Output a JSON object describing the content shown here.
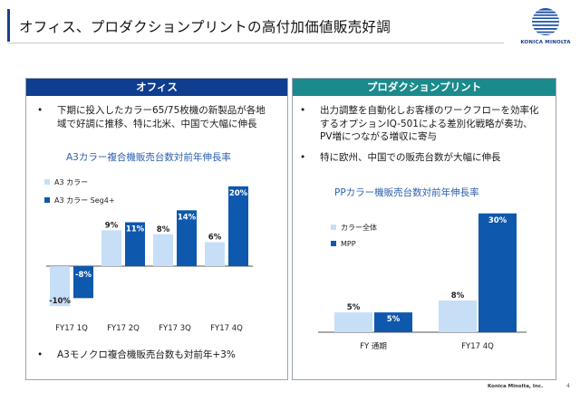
{
  "header": {
    "title": "オフィス、プロダクションプリントの高付加価値販売好調",
    "logo_text": "KONICA MINOLTA",
    "logo_icon": "globe-icon"
  },
  "colors": {
    "office_header": "#0f3d8f",
    "pp_header": "#1b8a8c",
    "light_bar": "#c7def7",
    "dark_bar": "#0e58ad",
    "chart_title": "#2d5fb0"
  },
  "left_panel": {
    "heading": "オフィス",
    "bullet1_line1": "下期に投入したカラー65/75枚機の新製品が各地",
    "bullet1_line2": "域で好調に推移、特に北米、中国で大幅に伸長",
    "bullet2": "A3モノクロ複合機販売台数も対前年+3%",
    "bullet_mark": "•"
  },
  "right_panel": {
    "heading": "プロダクションプリント",
    "bullet1_line1": "出力調整を自動化しお客様のワークフローを効率化",
    "bullet1_line2": "するオプションIQ-501による差別化戦略が奏功、",
    "bullet1_line3": "PV増につながる増収に寄与",
    "bullet2": "特に欧州、中国での販売台数が大幅に伸長",
    "bullet_mark": "•"
  },
  "chart_data": [
    {
      "type": "bar",
      "title": "A3カラー複合機販売台数対前年伸長率",
      "categories": [
        "FY17 1Q",
        "FY17 2Q",
        "FY17 3Q",
        "FY17 4Q"
      ],
      "series": [
        {
          "name": "A3 カラー",
          "values": [
            -10,
            9,
            8,
            6
          ],
          "labels": [
            "-10%",
            "9%",
            "8%",
            "6%"
          ],
          "color": "#c7def7"
        },
        {
          "name": "A3 カラー Seg4+",
          "values": [
            -8,
            11,
            14,
            20
          ],
          "labels": [
            "-8%",
            "11%",
            "14%",
            "20%"
          ],
          "color": "#0e58ad"
        }
      ],
      "ylim": [
        -12,
        22
      ],
      "legend": "top-left",
      "grid": false
    },
    {
      "type": "bar",
      "title": "PPカラー機販売台数対前年伸長率",
      "categories": [
        "FY 通期",
        "FY17 4Q"
      ],
      "series": [
        {
          "name": "カラー全体",
          "values": [
            5,
            8
          ],
          "labels": [
            "5%",
            "8%"
          ],
          "color": "#c7def7"
        },
        {
          "name": "MPP",
          "values": [
            5,
            30
          ],
          "labels": [
            "5%",
            "30%"
          ],
          "color": "#0e58ad"
        }
      ],
      "ylim": [
        0,
        32
      ],
      "legend": "top-left",
      "grid": false
    }
  ],
  "footer": {
    "company": "Konica Minolta, Inc.",
    "page_number": "4"
  }
}
